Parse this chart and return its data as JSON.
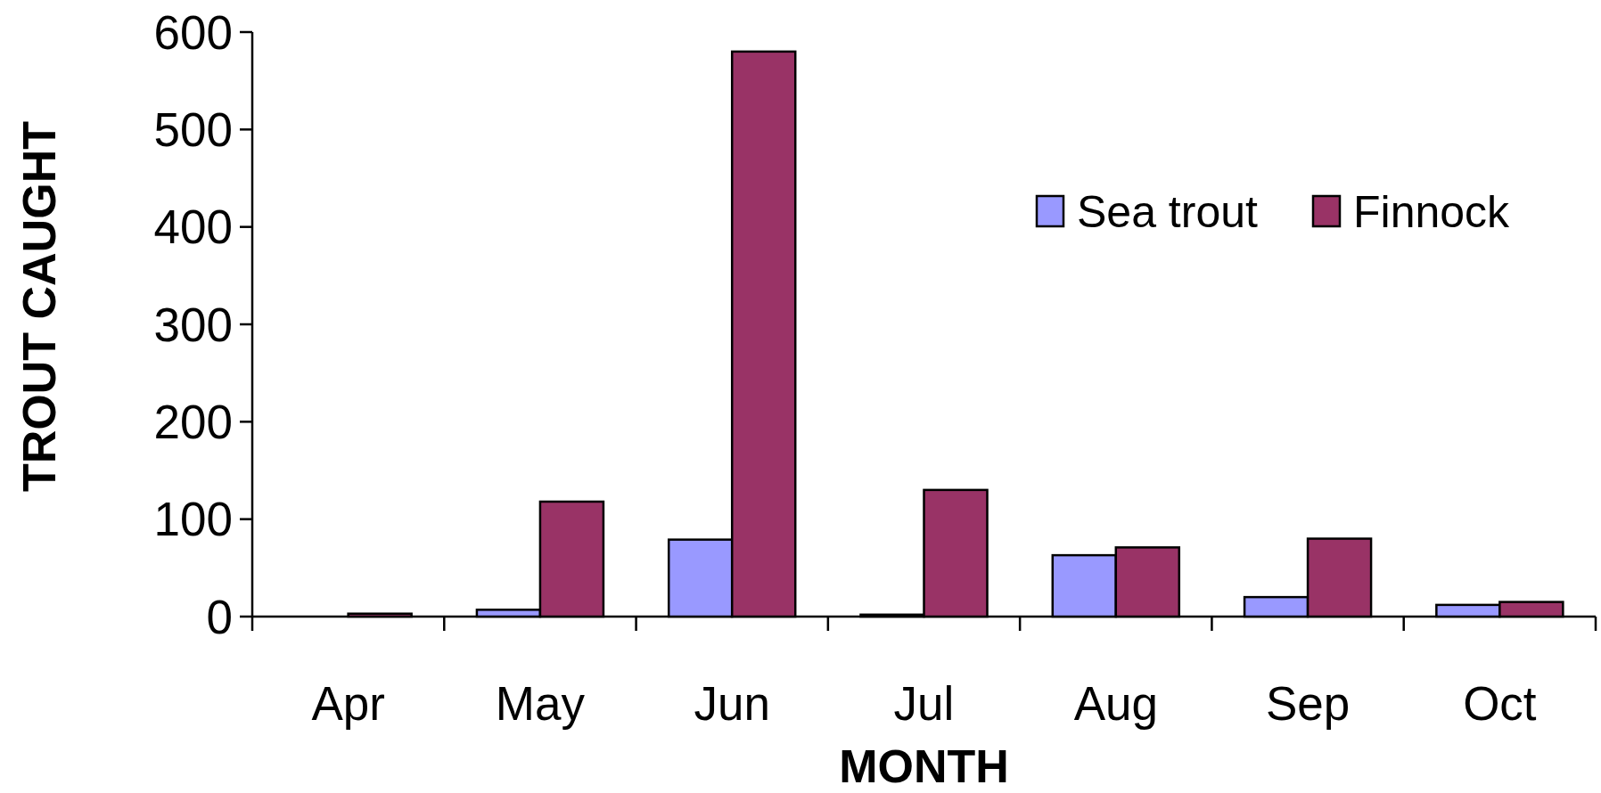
{
  "chart_data": {
    "type": "bar",
    "xlabel": "MONTH",
    "ylabel": "TROUT CAUGHT",
    "categories": [
      "Apr",
      "May",
      "Jun",
      "Jul",
      "Aug",
      "Sep",
      "Oct"
    ],
    "series": [
      {
        "name": "Sea trout",
        "color": "#9999ff",
        "values": [
          0,
          7,
          79,
          2,
          63,
          20,
          12
        ]
      },
      {
        "name": "Finnock",
        "color": "#993366",
        "values": [
          3,
          118,
          580,
          130,
          71,
          80,
          15
        ]
      }
    ],
    "ylim": [
      0,
      600
    ],
    "yticks": [
      0,
      100,
      200,
      300,
      400,
      500,
      600
    ],
    "grid": false,
    "legend": "top right"
  }
}
